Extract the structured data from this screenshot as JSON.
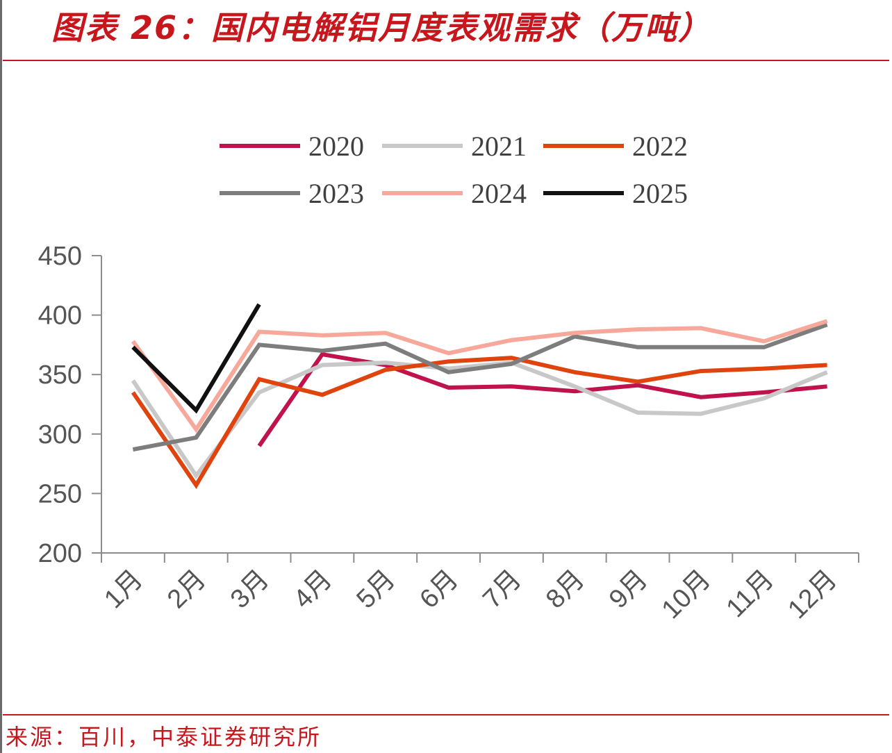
{
  "header": {
    "title": "图表 26：国内电解铝月度表观需求（万吨）"
  },
  "footer": {
    "source": "来源：百川，中泰证券研究所"
  },
  "chart_data": {
    "type": "line",
    "title": "图表 26：国内电解铝月度表观需求（万吨）",
    "xlabel": "",
    "ylabel": "",
    "ylim": [
      200,
      450
    ],
    "yticks": [
      "200",
      "250",
      "300",
      "350",
      "400",
      "450"
    ],
    "categories": [
      "1月",
      "2月",
      "3月",
      "4月",
      "5月",
      "6月",
      "7月",
      "8月",
      "9月",
      "10月",
      "11月",
      "12月"
    ],
    "grid": false,
    "legend_position": "top",
    "series": [
      {
        "name": "2020",
        "color": "#c0134e",
        "values": [
          null,
          null,
          290,
          367,
          358,
          339,
          340,
          336,
          341,
          331,
          335,
          340
        ]
      },
      {
        "name": "2021",
        "color": "#c8c8c8",
        "values": [
          345,
          265,
          335,
          358,
          360,
          355,
          360,
          340,
          318,
          317,
          330,
          352
        ]
      },
      {
        "name": "2022",
        "color": "#e0440e",
        "values": [
          335,
          257,
          346,
          333,
          354,
          361,
          364,
          352,
          344,
          353,
          355,
          358
        ]
      },
      {
        "name": "2023",
        "color": "#7d7d7d",
        "values": [
          287,
          297,
          375,
          370,
          376,
          352,
          359,
          382,
          373,
          373,
          373,
          392
        ]
      },
      {
        "name": "2024",
        "color": "#f7a89a",
        "values": [
          378,
          304,
          386,
          383,
          385,
          368,
          379,
          385,
          388,
          389,
          378,
          395
        ]
      },
      {
        "name": "2025",
        "color": "#111111",
        "values": [
          373,
          320,
          409,
          null,
          null,
          null,
          null,
          null,
          null,
          null,
          null,
          null
        ]
      }
    ]
  }
}
